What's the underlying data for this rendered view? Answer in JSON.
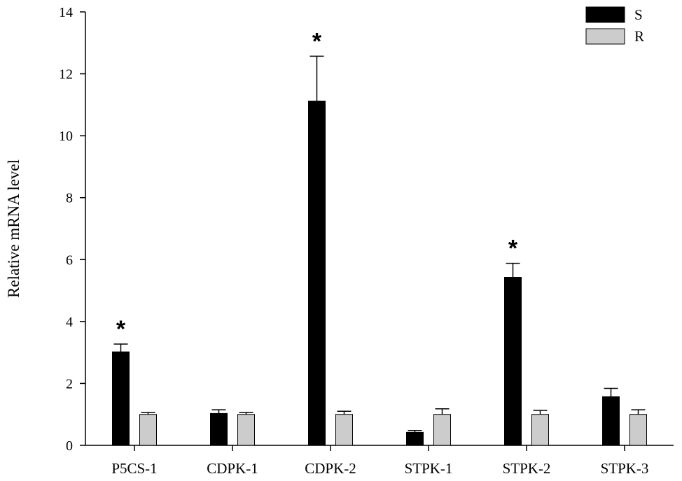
{
  "chart_data": {
    "type": "bar",
    "categories": [
      "P5CS-1",
      "CDPK-1",
      "CDPK-2",
      "STPK-1",
      "STPK-2",
      "STPK-3"
    ],
    "series": [
      {
        "name": "S",
        "color": "#000000",
        "values": [
          3.02,
          1.03,
          11.12,
          0.42,
          5.43,
          1.57
        ],
        "errors": [
          0.25,
          0.12,
          1.45,
          0.06,
          0.45,
          0.27
        ]
      },
      {
        "name": "R",
        "color": "#cccccc",
        "values": [
          1.0,
          1.0,
          1.0,
          1.0,
          1.0,
          1.0
        ],
        "errors": [
          0.06,
          0.06,
          0.1,
          0.18,
          0.13,
          0.15
        ]
      }
    ],
    "significance": [
      {
        "category": "P5CS-1",
        "series": "S",
        "label": "*"
      },
      {
        "category": "CDPK-2",
        "series": "S",
        "label": "*"
      },
      {
        "category": "STPK-2",
        "series": "S",
        "label": "*"
      }
    ],
    "ylabel": "Relative mRNA level",
    "xlabel": "",
    "title": "",
    "ylim": [
      0,
      14
    ],
    "yticks": [
      0,
      2,
      4,
      6,
      8,
      10,
      12,
      14
    ],
    "grid": false,
    "legend_position": "top-right"
  }
}
